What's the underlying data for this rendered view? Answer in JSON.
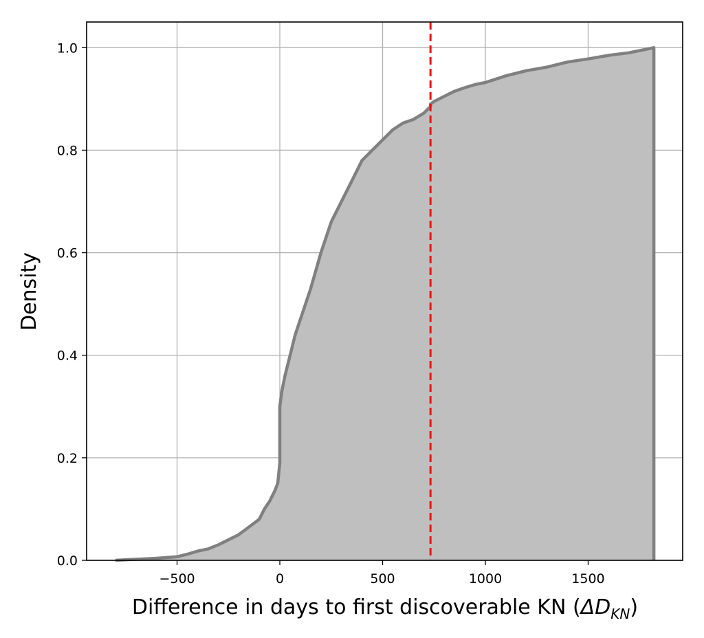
{
  "chart_data": {
    "type": "area",
    "title": "",
    "xlabel": "Difference in days to first discoverable KN (",
    "xlabel_symbol": "ΔD",
    "xlabel_subscript": "KN",
    "xlabel_close": ")",
    "ylabel": "Density",
    "xlim": [
      -940,
      1960
    ],
    "ylim": [
      0,
      1.05
    ],
    "x_ticks": [
      -500,
      0,
      500,
      1000,
      1500
    ],
    "x_tick_labels": [
      "−500",
      "0",
      "500",
      "1000",
      "1500"
    ],
    "y_ticks": [
      0.0,
      0.2,
      0.4,
      0.6,
      0.8,
      1.0
    ],
    "y_tick_labels": [
      "0.0",
      "0.2",
      "0.4",
      "0.6",
      "0.8",
      "1.0"
    ],
    "grid": true,
    "series": [
      {
        "style": "cumulative step histogram, filled",
        "fill_color": "#bfbfbf",
        "edge_color": "#808080",
        "x": [
          -800,
          -700,
          -600,
          -500,
          -450,
          -400,
          -350,
          -300,
          -250,
          -200,
          -150,
          -100,
          -75,
          -50,
          -25,
          -10,
          0,
          0,
          10,
          25,
          50,
          75,
          100,
          150,
          200,
          250,
          300,
          350,
          400,
          450,
          500,
          550,
          600,
          650,
          700,
          733,
          733,
          750,
          800,
          850,
          900,
          950,
          1000,
          1100,
          1200,
          1300,
          1400,
          1500,
          1600,
          1700,
          1760,
          1820,
          1820
        ],
        "y": [
          0.0,
          0.002,
          0.004,
          0.007,
          0.012,
          0.018,
          0.022,
          0.03,
          0.04,
          0.05,
          0.065,
          0.08,
          0.1,
          0.115,
          0.135,
          0.15,
          0.19,
          0.3,
          0.33,
          0.36,
          0.4,
          0.44,
          0.47,
          0.53,
          0.6,
          0.66,
          0.7,
          0.74,
          0.78,
          0.8,
          0.82,
          0.84,
          0.853,
          0.86,
          0.872,
          0.885,
          0.89,
          0.895,
          0.905,
          0.915,
          0.922,
          0.928,
          0.932,
          0.945,
          0.955,
          0.962,
          0.972,
          0.978,
          0.985,
          0.99,
          0.995,
          1.0,
          0.0
        ]
      }
    ],
    "vline": {
      "x": 733,
      "color": "#ee1111",
      "style": "dashed"
    }
  }
}
